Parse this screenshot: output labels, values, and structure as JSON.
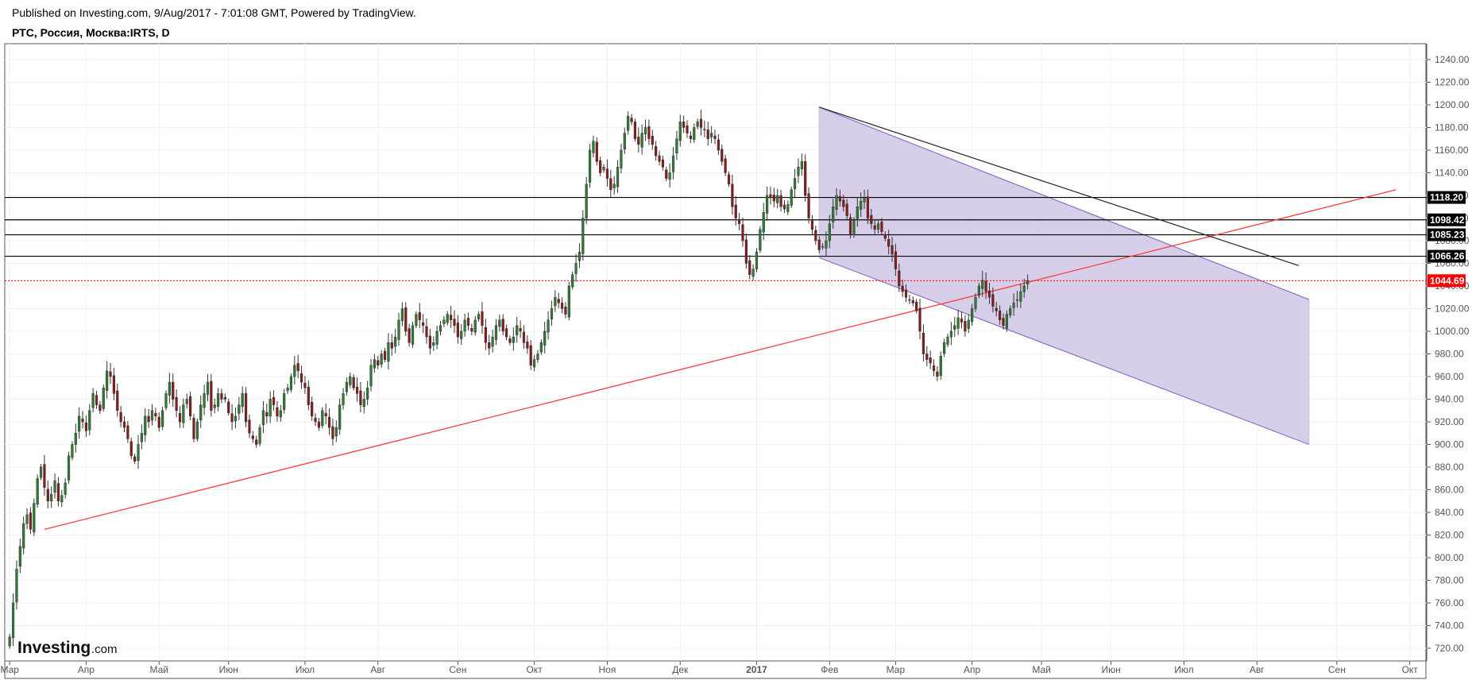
{
  "header": {
    "published": "Published on Investing.com, 9/Aug/2017 - 7:01:08 GMT, Powered by TradingView.",
    "symbol": "РТС, Россия, Москва:IRTS, D"
  },
  "logo": {
    "main": "Investing",
    "suffix": ".com"
  },
  "colors": {
    "up": "#2e7d32",
    "down": "#8b1a1a",
    "trend": "#ff3b3b",
    "channel_fill": "#c9bfe3",
    "channel_line": "#8e6fc4",
    "current": "#ff0000"
  },
  "chart_data": {
    "type": "candlestick",
    "title": "",
    "ylim": [
      710,
      1250
    ],
    "y_ticks": [
      "720.00",
      "740.00",
      "760.00",
      "780.00",
      "800.00",
      "820.00",
      "840.00",
      "860.00",
      "880.00",
      "900.00",
      "920.00",
      "940.00",
      "960.00",
      "980.00",
      "1000.00",
      "1020.00",
      "1040.00",
      "1060.00",
      "1080.00",
      "1100.00",
      "1120.00",
      "1140.00",
      "1160.00",
      "1180.00",
      "1200.00",
      "1220.00",
      "1240.00"
    ],
    "x_ticks": [
      {
        "label": "Мар",
        "i": 0
      },
      {
        "label": "Апр",
        "i": 22
      },
      {
        "label": "Май",
        "i": 43
      },
      {
        "label": "Июн",
        "i": 63
      },
      {
        "label": "Июл",
        "i": 85
      },
      {
        "label": "Авг",
        "i": 106
      },
      {
        "label": "Сен",
        "i": 129
      },
      {
        "label": "Окт",
        "i": 151
      },
      {
        "label": "Ноя",
        "i": 172
      },
      {
        "label": "Дек",
        "i": 193
      },
      {
        "label": "2017",
        "i": 215,
        "bold": true
      },
      {
        "label": "Фев",
        "i": 236
      },
      {
        "label": "Мар",
        "i": 255
      },
      {
        "label": "Апр",
        "i": 277
      },
      {
        "label": "Май",
        "i": 297
      },
      {
        "label": "Июн",
        "i": 317
      },
      {
        "label": "Июл",
        "i": 338
      },
      {
        "label": "Авг",
        "i": 359
      },
      {
        "label": "Сен",
        "i": 382
      },
      {
        "label": "Окт",
        "i": 403
      }
    ],
    "n_slots": 407,
    "close": [
      730,
      760,
      790,
      810,
      830,
      838,
      825,
      848,
      870,
      880,
      862,
      850,
      856,
      868,
      850,
      855,
      866,
      890,
      900,
      910,
      925,
      920,
      912,
      930,
      945,
      935,
      930,
      950,
      965,
      960,
      945,
      930,
      920,
      915,
      905,
      890,
      885,
      900,
      910,
      925,
      920,
      930,
      925,
      915,
      930,
      945,
      955,
      940,
      930,
      920,
      935,
      940,
      925,
      905,
      920,
      935,
      945,
      955,
      930,
      935,
      945,
      940,
      940,
      928,
      920,
      925,
      935,
      945,
      920,
      910,
      905,
      900,
      915,
      930,
      925,
      940,
      935,
      925,
      930,
      945,
      950,
      960,
      970,
      965,
      955,
      950,
      935,
      925,
      920,
      915,
      930,
      925,
      915,
      905,
      915,
      935,
      945,
      955,
      960,
      950,
      945,
      935,
      940,
      950,
      970,
      975,
      970,
      980,
      975,
      990,
      985,
      995,
      1010,
      1020,
      1000,
      990,
      1005,
      1015,
      1010,
      1005,
      995,
      985,
      990,
      1000,
      1005,
      1010,
      1015,
      1010,
      1005,
      995,
      1000,
      1010,
      1005,
      1000,
      1010,
      1015,
      1005,
      990,
      985,
      995,
      1005,
      1010,
      1000,
      995,
      990,
      995,
      1005,
      1000,
      990,
      985,
      970,
      975,
      980,
      990,
      1000,
      1010,
      1020,
      1030,
      1025,
      1020,
      1015,
      1040,
      1050,
      1060,
      1070,
      1100,
      1130,
      1160,
      1168,
      1150,
      1140,
      1145,
      1135,
      1125,
      1130,
      1145,
      1160,
      1175,
      1190,
      1185,
      1170,
      1165,
      1175,
      1180,
      1170,
      1165,
      1155,
      1150,
      1145,
      1135,
      1140,
      1155,
      1170,
      1185,
      1180,
      1175,
      1170,
      1180,
      1185,
      1180,
      1178,
      1170,
      1175,
      1170,
      1160,
      1150,
      1140,
      1130,
      1110,
      1100,
      1095,
      1080,
      1060,
      1050,
      1055,
      1070,
      1090,
      1105,
      1120,
      1118,
      1115,
      1120,
      1110,
      1108,
      1112,
      1125,
      1135,
      1145,
      1150,
      1120,
      1100,
      1090,
      1080,
      1072,
      1075,
      1080,
      1095,
      1110,
      1120,
      1115,
      1110,
      1102,
      1085,
      1098,
      1110,
      1115,
      1118,
      1100,
      1095,
      1090,
      1095,
      1088,
      1082,
      1075,
      1068,
      1055,
      1040,
      1035,
      1030,
      1028,
      1025,
      1018,
      1000,
      980,
      975,
      972,
      965,
      960,
      978,
      990,
      995,
      1000,
      1005,
      1012,
      1008,
      1000,
      1010,
      1020,
      1030,
      1040,
      1045,
      1035,
      1030,
      1022,
      1018,
      1010,
      1005,
      1015,
      1020,
      1025,
      1028,
      1035,
      1040,
      1044.69
    ],
    "h_levels": [
      {
        "value": 1118.2,
        "label": "1118.20"
      },
      {
        "value": 1098.42,
        "label": "1098.42"
      },
      {
        "value": 1085.23,
        "label": "1085.23"
      },
      {
        "value": 1066.26,
        "label": "1066.26"
      }
    ],
    "current_price": {
      "value": 1044.69,
      "label": "1044.69"
    },
    "trend_line": {
      "from": {
        "i": 10,
        "v": 825
      },
      "to": {
        "i": 399,
        "v": 1125
      }
    },
    "desc_line": {
      "from": {
        "i": 233,
        "v": 1198
      },
      "to": {
        "i": 371,
        "v": 1058
      }
    },
    "channel": {
      "upper": {
        "from": {
          "i": 233,
          "v": 1198
        },
        "to": {
          "i": 374,
          "v": 1028
        }
      },
      "lower": {
        "from": {
          "i": 233,
          "v": 1065
        },
        "to": {
          "i": 374,
          "v": 900
        }
      }
    }
  }
}
